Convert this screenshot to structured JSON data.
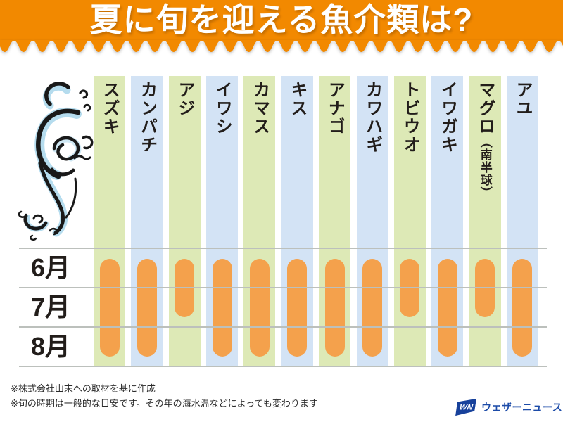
{
  "header": {
    "title": "夏に旬を迎える魚介類は?"
  },
  "chart_data": {
    "type": "bar",
    "title": "夏に旬を迎える魚介類は?",
    "months": [
      "6月",
      "7月",
      "8月"
    ],
    "species": [
      {
        "name": "スズキ",
        "note": "",
        "season": [
          "6月",
          "7月",
          "8月"
        ]
      },
      {
        "name": "カンパチ",
        "note": "",
        "season": [
          "6月",
          "7月",
          "8月"
        ]
      },
      {
        "name": "アジ",
        "note": "",
        "season": [
          "6月",
          "7月"
        ]
      },
      {
        "name": "イワシ",
        "note": "",
        "season": [
          "6月",
          "7月",
          "8月"
        ]
      },
      {
        "name": "カマス",
        "note": "",
        "season": [
          "6月",
          "7月",
          "8月"
        ]
      },
      {
        "name": "キス",
        "note": "",
        "season": [
          "6月",
          "7月",
          "8月"
        ]
      },
      {
        "name": "アナゴ",
        "note": "",
        "season": [
          "6月",
          "7月",
          "8月"
        ]
      },
      {
        "name": "カワハギ",
        "note": "",
        "season": [
          "6月",
          "7月",
          "8月"
        ]
      },
      {
        "name": "トビウオ",
        "note": "",
        "season": [
          "6月",
          "7月"
        ]
      },
      {
        "name": "イワガキ",
        "note": "",
        "season": [
          "6月",
          "7月",
          "8月"
        ]
      },
      {
        "name": "マグロ",
        "note": "（南半球）",
        "season": [
          "6月",
          "7月"
        ]
      },
      {
        "name": "アユ",
        "note": "",
        "season": [
          "6月",
          "7月",
          "8月"
        ]
      }
    ],
    "grid": true,
    "legend_position": "none"
  },
  "footer": {
    "notes": [
      "※株式会社山末への取材を基に作成",
      "※旬の時期は一般的な目安です。その年の海水温などによっても変わります"
    ]
  },
  "logo": {
    "mark": "WN",
    "text": "ウェザーニュース"
  },
  "colors": {
    "header_bg": "#f28900",
    "bar": "#f4a14c",
    "column_green": "#dde9b6",
    "column_blue": "#d3e3f5",
    "logo_blue": "#17419b"
  }
}
